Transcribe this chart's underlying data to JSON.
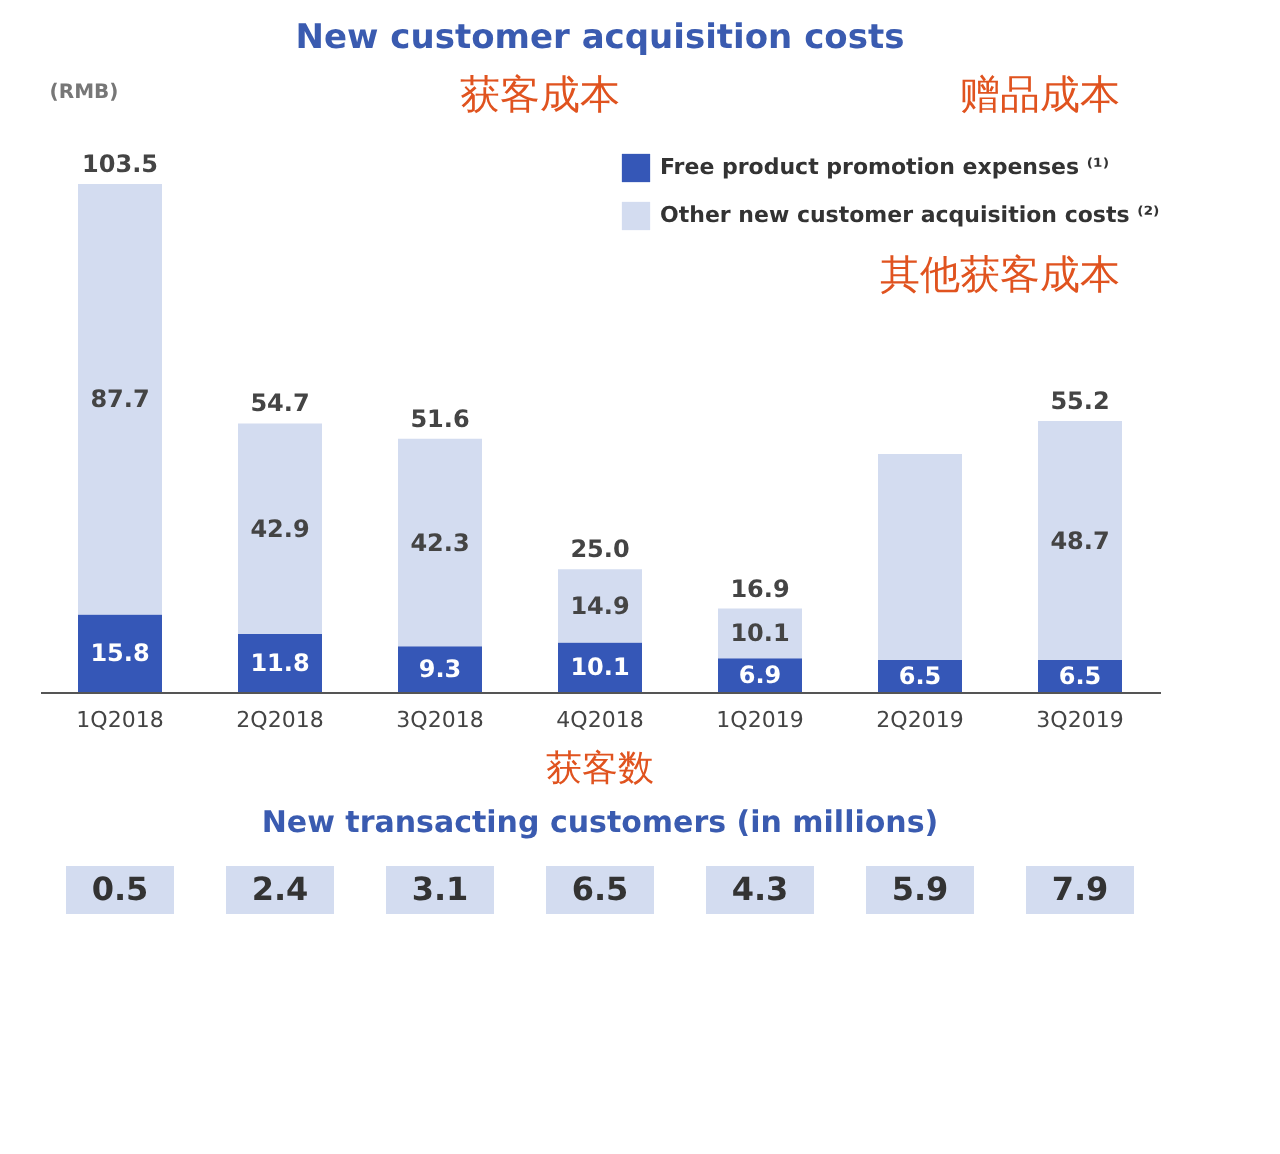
{
  "chart_data": [
    {
      "type": "bar",
      "title": "New customer acquisition costs",
      "ylabel": "(RMB)",
      "stacked": true,
      "legend": "top right",
      "categories": [
        "1Q2018",
        "2Q2018",
        "3Q2018",
        "4Q2018",
        "1Q2019",
        "2Q2019",
        "3Q2019"
      ],
      "series": [
        {
          "name": "Free product promotion expenses ⁽¹⁾",
          "color": "#3557b7",
          "values": [
            15.8,
            11.8,
            9.3,
            10.1,
            6.9,
            6.5,
            6.5
          ],
          "value_labels": [
            "15.8",
            "11.8",
            "9.3",
            "10.1",
            "6.9",
            "6.5",
            "6.5"
          ]
        },
        {
          "name": "Other new customer acquisition costs ⁽²⁾",
          "color": "#d3dcf0",
          "values": [
            87.7,
            42.9,
            42.3,
            14.9,
            10.1,
            42.0,
            48.7
          ],
          "value_labels": [
            "87.7",
            "42.9",
            "42.3",
            "14.9",
            "10.1",
            null,
            "48.7"
          ]
        }
      ],
      "totals": [
        "103.5",
        "54.7",
        "51.6",
        "25.0",
        "16.9",
        null,
        "55.2"
      ],
      "annotations": [
        "获客成本",
        "赠品成本",
        "其他获客成本"
      ]
    },
    {
      "type": "other",
      "title": "New transacting customers (in millions)",
      "categories": [
        null,
        null,
        null,
        null,
        null,
        null,
        null
      ],
      "values": [
        0.5,
        2.4,
        3.1,
        6.5,
        4.3,
        5.9,
        7.9
      ],
      "color": "#d3dcf0",
      "data_labels": true,
      "annotations": [
        "获客数"
      ]
    }
  ]
}
